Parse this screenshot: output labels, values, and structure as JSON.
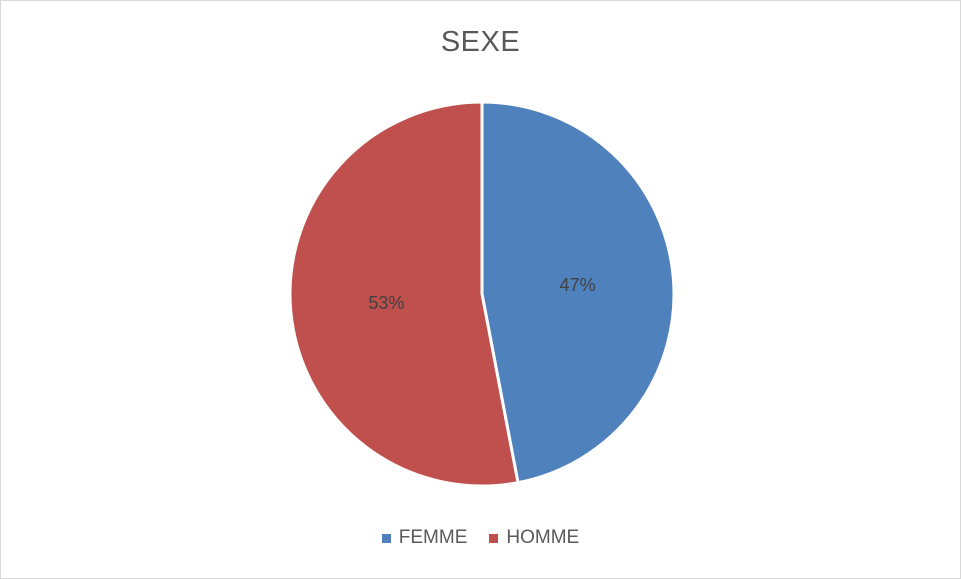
{
  "chart_data": {
    "type": "pie",
    "title": "SEXE",
    "slices": [
      {
        "name": "FEMME",
        "value": 47,
        "label": "47%",
        "color": "#4f81bd"
      },
      {
        "name": "HOMME",
        "value": 53,
        "label": "53%",
        "color": "#c0504d"
      }
    ],
    "legend_position": "bottom"
  }
}
